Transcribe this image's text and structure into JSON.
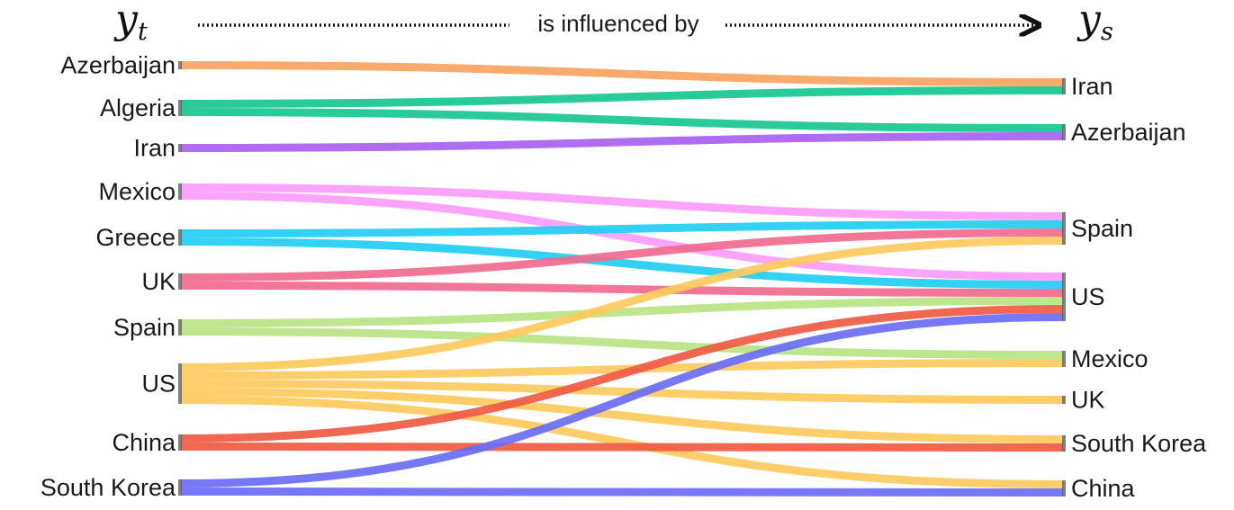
{
  "header": {
    "target_symbol": "y",
    "target_subscript": "t",
    "source_symbol": "y",
    "source_subscript": "s",
    "relation": "is influenced by"
  },
  "colors": {
    "Azerbaijan": "#f9a35f",
    "Algeria": "#17c793",
    "Iran": "#a861f0",
    "Mexico": "#fc9cfb",
    "Greece": "#22cdf2",
    "UK": "#f06a8e",
    "Spain": "#b8e486",
    "US": "#fdca5c",
    "China": "#ef5a43",
    "South Korea": "#6a6cf4"
  },
  "chart_data": {
    "type": "sankey",
    "left_nodes": [
      "Azerbaijan",
      "Algeria",
      "Iran",
      "Mexico",
      "Greece",
      "UK",
      "Spain",
      "US",
      "China",
      "South Korea"
    ],
    "right_nodes": [
      "Iran",
      "Azerbaijan",
      "Spain",
      "US",
      "Mexico",
      "UK",
      "South Korea",
      "China"
    ],
    "links": [
      {
        "source": "Azerbaijan",
        "target": "Iran",
        "value": 1
      },
      {
        "source": "Algeria",
        "target": "Iran",
        "value": 1
      },
      {
        "source": "Algeria",
        "target": "Azerbaijan",
        "value": 1
      },
      {
        "source": "Iran",
        "target": "Azerbaijan",
        "value": 1
      },
      {
        "source": "Mexico",
        "target": "Spain",
        "value": 1
      },
      {
        "source": "Mexico",
        "target": "US",
        "value": 1
      },
      {
        "source": "Greece",
        "target": "Spain",
        "value": 1
      },
      {
        "source": "Greece",
        "target": "US",
        "value": 1
      },
      {
        "source": "UK",
        "target": "Spain",
        "value": 1
      },
      {
        "source": "UK",
        "target": "US",
        "value": 1
      },
      {
        "source": "Spain",
        "target": "US",
        "value": 1
      },
      {
        "source": "Spain",
        "target": "Mexico",
        "value": 1
      },
      {
        "source": "US",
        "target": "Spain",
        "value": 1
      },
      {
        "source": "US",
        "target": "Mexico",
        "value": 1
      },
      {
        "source": "US",
        "target": "UK",
        "value": 1
      },
      {
        "source": "US",
        "target": "South Korea",
        "value": 1
      },
      {
        "source": "US",
        "target": "China",
        "value": 1
      },
      {
        "source": "China",
        "target": "US",
        "value": 1
      },
      {
        "source": "China",
        "target": "South Korea",
        "value": 1
      },
      {
        "source": "South Korea",
        "target": "US",
        "value": 1
      },
      {
        "source": "South Korea",
        "target": "China",
        "value": 1
      }
    ]
  }
}
